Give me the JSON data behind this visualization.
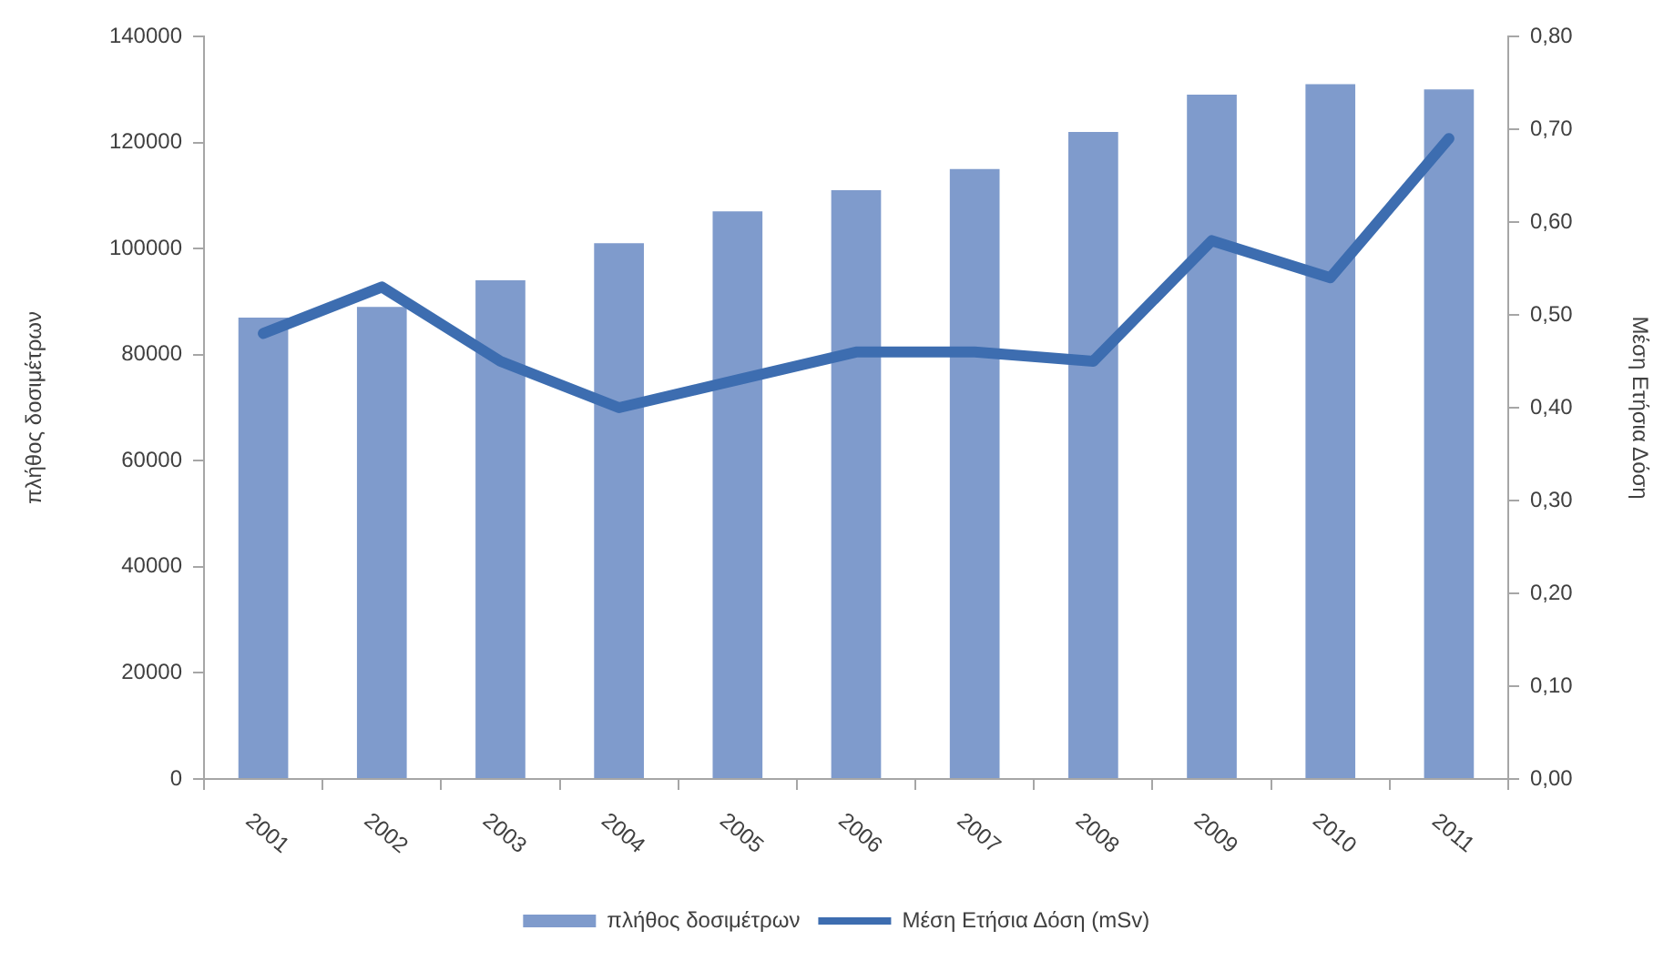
{
  "chart_data": {
    "type": "bar",
    "ylabel": "πλήθος δοσιμέτρων",
    "y2label": "Μέση Ετήσια Δόση",
    "categories": [
      "2001",
      "2002",
      "2003",
      "2004",
      "2005",
      "2006",
      "2007",
      "2008",
      "2009",
      "2010",
      "2011"
    ],
    "series": [
      {
        "name": "πλήθος δοσιμέτρων",
        "color": "#7f9bcc",
        "values": [
          87000,
          89000,
          94000,
          101000,
          107000,
          111000,
          115000,
          122000,
          129000,
          131000,
          130000
        ]
      },
      {
        "name": "Μέση Ετήσια Δόση (mSv)",
        "type": "line",
        "axis": "y2",
        "color": "#3d6db0",
        "values": [
          0.48,
          0.53,
          0.45,
          0.4,
          0.43,
          0.46,
          0.46,
          0.45,
          0.58,
          0.54,
          0.69
        ]
      }
    ],
    "ylim": [
      0,
      140000
    ],
    "yticks": [
      0,
      20000,
      40000,
      60000,
      80000,
      100000,
      120000,
      140000
    ],
    "y2lim": [
      0,
      0.8
    ],
    "y2ticks": [
      {
        "value": 0,
        "label": "0,00"
      },
      {
        "value": 0.1,
        "label": "0,10"
      },
      {
        "value": 0.2,
        "label": "0,20"
      },
      {
        "value": 0.3,
        "label": "0,30"
      },
      {
        "value": 0.4,
        "label": "0,40"
      },
      {
        "value": 0.5,
        "label": "0,50"
      },
      {
        "value": 0.6,
        "label": "0,60"
      },
      {
        "value": 0.7,
        "label": "0,70"
      },
      {
        "value": 0.8,
        "label": "0,80"
      }
    ],
    "legend": "bottom"
  }
}
